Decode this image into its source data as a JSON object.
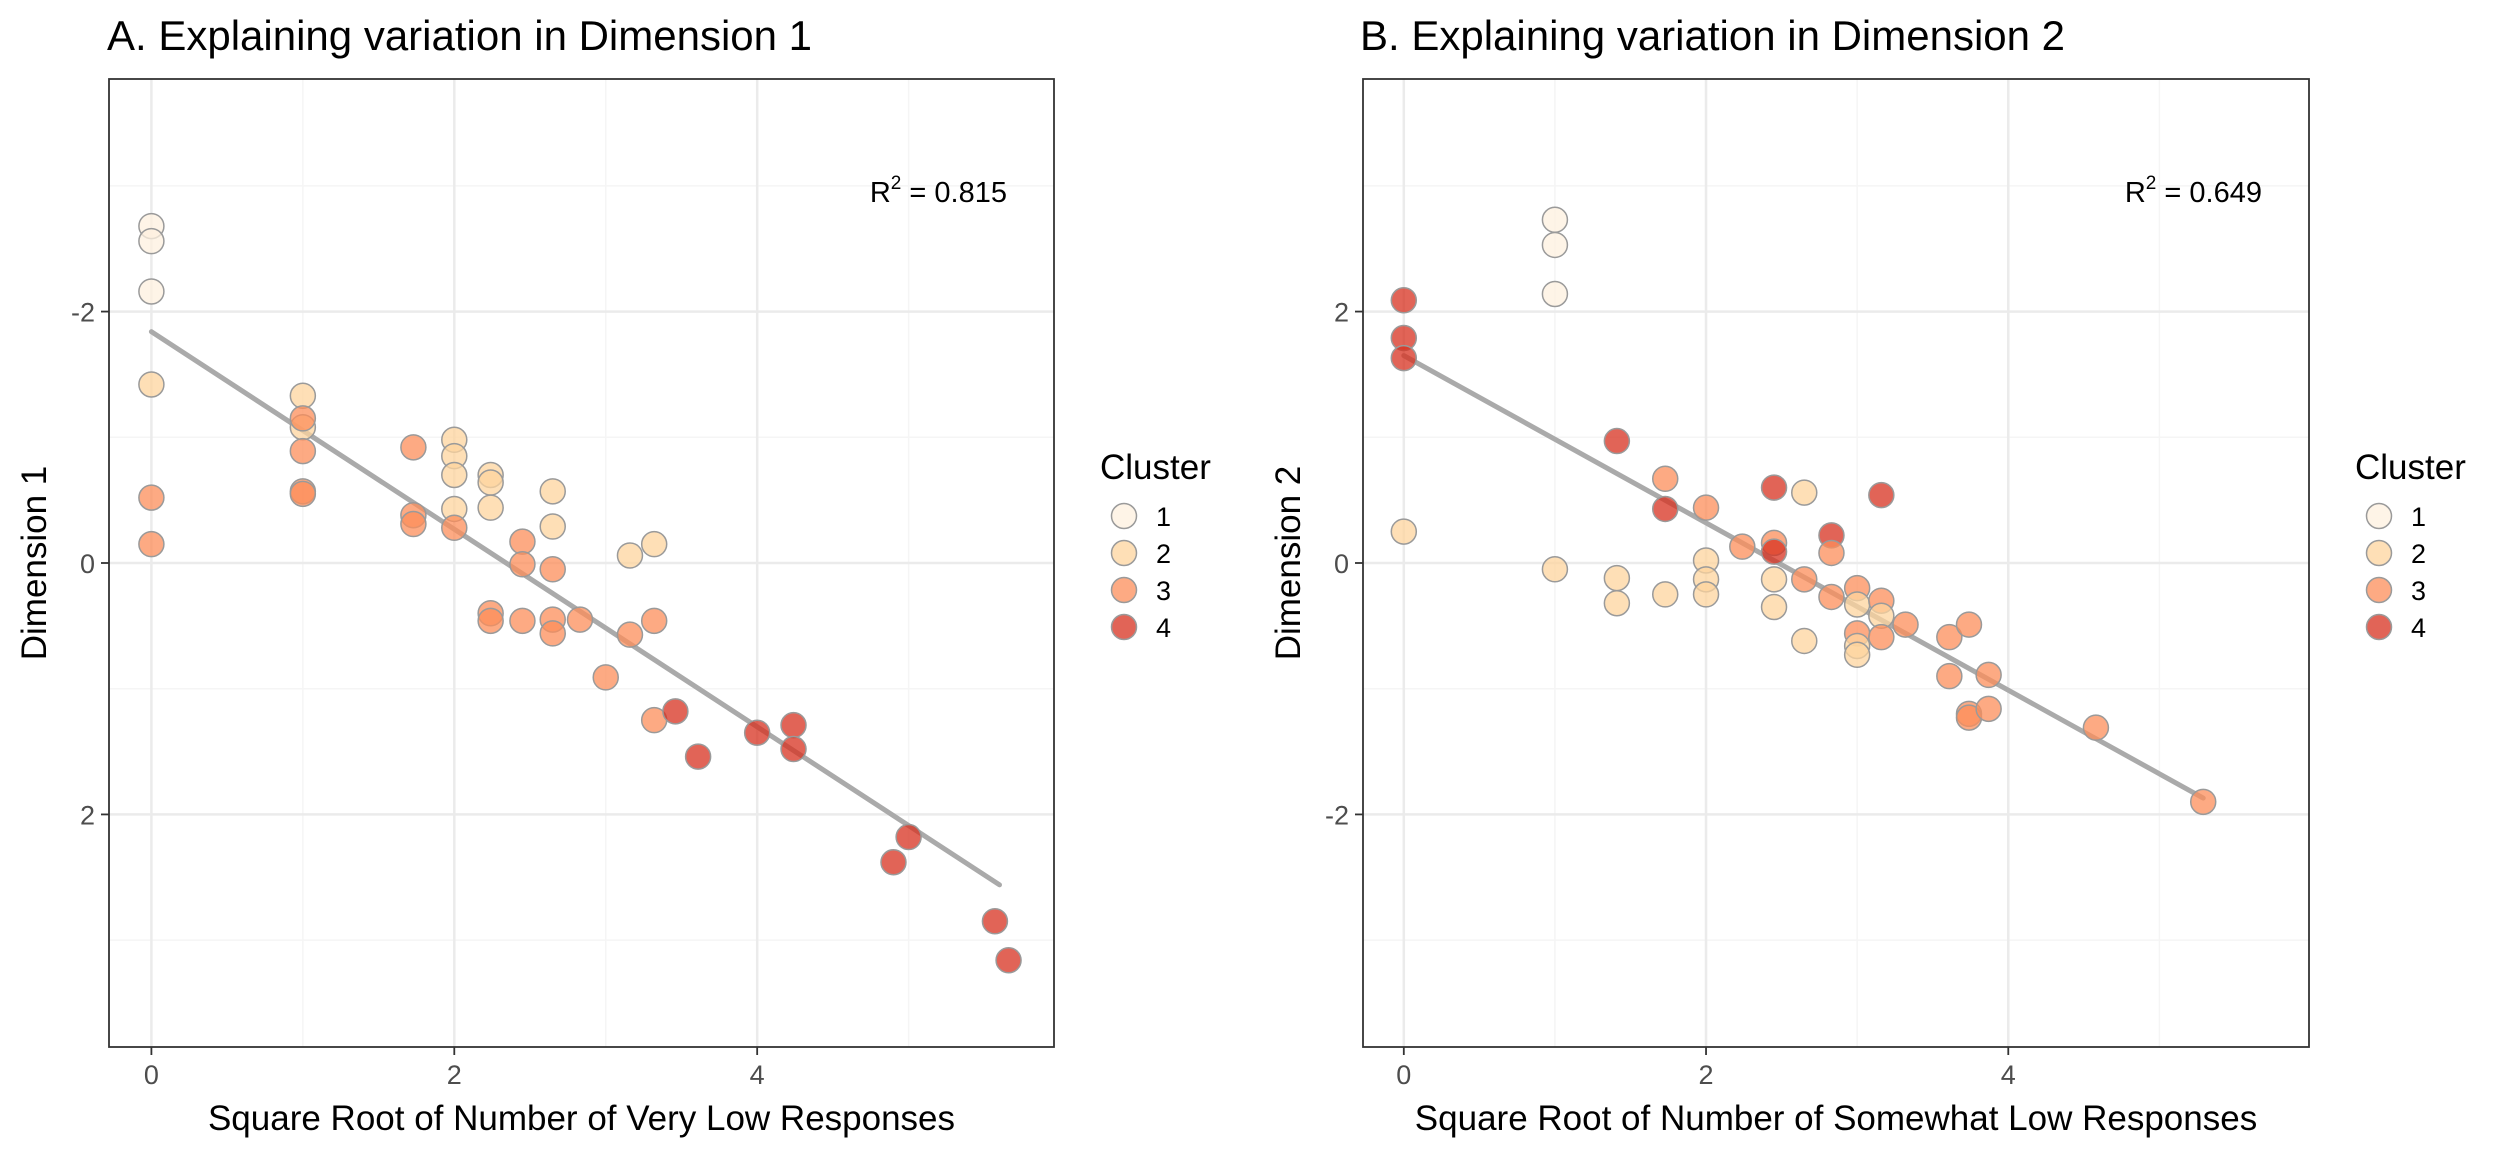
{
  "chart_data": [
    {
      "type": "scatter",
      "title": "A. Explaining variation in Dimension 1",
      "xlabel": "Square Root of Number of Very Low Responses",
      "ylabel": "Dimension 1",
      "xlim": [
        -0.28,
        5.96
      ],
      "ylim": [
        -3.85,
        3.85
      ],
      "y_reversed": true,
      "xticks": [
        0,
        2,
        4
      ],
      "xtick_labels": [
        "0",
        "2",
        "4"
      ],
      "yticks": [
        -2,
        0,
        2
      ],
      "ytick_labels": [
        "-2",
        "0",
        "2"
      ],
      "grid": true,
      "annotation": {
        "base": "R",
        "sup": "2",
        "rest": " = 0.815"
      },
      "fit_line": {
        "x": [
          0,
          5.6
        ],
        "y": [
          -1.84,
          2.56
        ]
      },
      "legend": {
        "title": "Cluster",
        "position": "right",
        "entries": [
          "1",
          "2",
          "3",
          "4"
        ]
      },
      "points": [
        {
          "x": 0,
          "y": -2.68,
          "cluster": 1
        },
        {
          "x": 0,
          "y": -2.56,
          "cluster": 1
        },
        {
          "x": 0,
          "y": -2.16,
          "cluster": 1
        },
        {
          "x": 0,
          "y": -1.42,
          "cluster": 2
        },
        {
          "x": 0,
          "y": -0.52,
          "cluster": 3
        },
        {
          "x": 0,
          "y": -0.15,
          "cluster": 3
        },
        {
          "x": 1,
          "y": -1.33,
          "cluster": 2
        },
        {
          "x": 1,
          "y": -1.08,
          "cluster": 2
        },
        {
          "x": 1,
          "y": -1.15,
          "cluster": 3
        },
        {
          "x": 1,
          "y": -0.89,
          "cluster": 3
        },
        {
          "x": 1,
          "y": -0.57,
          "cluster": 3
        },
        {
          "x": 1,
          "y": -0.55,
          "cluster": 3
        },
        {
          "x": 1.73,
          "y": -0.92,
          "cluster": 3
        },
        {
          "x": 1.73,
          "y": -0.38,
          "cluster": 3
        },
        {
          "x": 1.73,
          "y": -0.31,
          "cluster": 3
        },
        {
          "x": 2,
          "y": -0.98,
          "cluster": 2
        },
        {
          "x": 2,
          "y": -0.85,
          "cluster": 2
        },
        {
          "x": 2,
          "y": -0.7,
          "cluster": 2
        },
        {
          "x": 2,
          "y": -0.43,
          "cluster": 2
        },
        {
          "x": 2,
          "y": -0.28,
          "cluster": 3
        },
        {
          "x": 2.24,
          "y": -0.7,
          "cluster": 2
        },
        {
          "x": 2.24,
          "y": -0.64,
          "cluster": 2
        },
        {
          "x": 2.24,
          "y": -0.44,
          "cluster": 2
        },
        {
          "x": 2.24,
          "y": 0.4,
          "cluster": 3
        },
        {
          "x": 2.24,
          "y": 0.46,
          "cluster": 3
        },
        {
          "x": 2.45,
          "y": -0.17,
          "cluster": 3
        },
        {
          "x": 2.45,
          "y": 0.01,
          "cluster": 3
        },
        {
          "x": 2.45,
          "y": 0.46,
          "cluster": 3
        },
        {
          "x": 2.65,
          "y": -0.57,
          "cluster": 2
        },
        {
          "x": 2.65,
          "y": -0.29,
          "cluster": 2
        },
        {
          "x": 2.65,
          "y": 0.05,
          "cluster": 3
        },
        {
          "x": 2.65,
          "y": 0.45,
          "cluster": 3
        },
        {
          "x": 2.65,
          "y": 0.56,
          "cluster": 3
        },
        {
          "x": 2.83,
          "y": 0.45,
          "cluster": 3
        },
        {
          "x": 3,
          "y": 0.91,
          "cluster": 3
        },
        {
          "x": 3.16,
          "y": -0.06,
          "cluster": 2
        },
        {
          "x": 3.16,
          "y": 0.57,
          "cluster": 3
        },
        {
          "x": 3.32,
          "y": -0.15,
          "cluster": 2
        },
        {
          "x": 3.32,
          "y": 0.46,
          "cluster": 3
        },
        {
          "x": 3.32,
          "y": 1.25,
          "cluster": 3
        },
        {
          "x": 3.46,
          "y": 1.18,
          "cluster": 4
        },
        {
          "x": 3.61,
          "y": 1.54,
          "cluster": 4
        },
        {
          "x": 4,
          "y": 1.35,
          "cluster": 4
        },
        {
          "x": 4.24,
          "y": 1.29,
          "cluster": 4
        },
        {
          "x": 4.24,
          "y": 1.48,
          "cluster": 4
        },
        {
          "x": 4.9,
          "y": 2.38,
          "cluster": 4
        },
        {
          "x": 5,
          "y": 2.18,
          "cluster": 4
        },
        {
          "x": 5.57,
          "y": 2.85,
          "cluster": 4
        },
        {
          "x": 5.66,
          "y": 3.16,
          "cluster": 4
        }
      ]
    },
    {
      "type": "scatter",
      "title": "B. Explaining variation in Dimension 2",
      "xlabel": "Square Root of Number of Somewhat Low Responses",
      "ylabel": "Dimension 2",
      "xlim": [
        -0.27,
        5.99
      ],
      "ylim": [
        -3.85,
        3.85
      ],
      "y_reversed": false,
      "xticks": [
        0,
        2,
        4
      ],
      "xtick_labels": [
        "0",
        "2",
        "4"
      ],
      "yticks": [
        -2,
        0,
        2
      ],
      "ytick_labels": [
        "-2",
        "0",
        "2"
      ],
      "grid": true,
      "annotation": {
        "base": "R",
        "sup": "2",
        "rest": " = 0.649"
      },
      "fit_line": {
        "x": [
          0,
          5.29
        ],
        "y": [
          1.65,
          -1.87
        ]
      },
      "legend": {
        "title": "Cluster",
        "position": "right",
        "entries": [
          "1",
          "2",
          "3",
          "4"
        ]
      },
      "points": [
        {
          "x": 1,
          "y": 2.73,
          "cluster": 1
        },
        {
          "x": 1,
          "y": 2.53,
          "cluster": 1
        },
        {
          "x": 1,
          "y": 2.14,
          "cluster": 1
        },
        {
          "x": 0,
          "y": 2.09,
          "cluster": 4
        },
        {
          "x": 0,
          "y": 1.79,
          "cluster": 4
        },
        {
          "x": 0,
          "y": 1.63,
          "cluster": 4
        },
        {
          "x": 0,
          "y": 0.25,
          "cluster": 2
        },
        {
          "x": 1,
          "y": -0.05,
          "cluster": 2
        },
        {
          "x": 1.41,
          "y": 0.97,
          "cluster": 4
        },
        {
          "x": 1.41,
          "y": -0.12,
          "cluster": 2
        },
        {
          "x": 1.41,
          "y": -0.32,
          "cluster": 2
        },
        {
          "x": 1.73,
          "y": 0.67,
          "cluster": 3
        },
        {
          "x": 1.73,
          "y": 0.43,
          "cluster": 4
        },
        {
          "x": 1.73,
          "y": -0.25,
          "cluster": 2
        },
        {
          "x": 2,
          "y": 0.44,
          "cluster": 3
        },
        {
          "x": 2,
          "y": 0.02,
          "cluster": 2
        },
        {
          "x": 2,
          "y": -0.13,
          "cluster": 2
        },
        {
          "x": 2,
          "y": -0.25,
          "cluster": 2
        },
        {
          "x": 2.24,
          "y": 0.13,
          "cluster": 3
        },
        {
          "x": 2.45,
          "y": 0.6,
          "cluster": 4
        },
        {
          "x": 2.45,
          "y": 0.16,
          "cluster": 3
        },
        {
          "x": 2.45,
          "y": 0.09,
          "cluster": 4
        },
        {
          "x": 2.45,
          "y": -0.13,
          "cluster": 2
        },
        {
          "x": 2.45,
          "y": -0.35,
          "cluster": 2
        },
        {
          "x": 2.65,
          "y": 0.56,
          "cluster": 2
        },
        {
          "x": 2.65,
          "y": -0.13,
          "cluster": 3
        },
        {
          "x": 2.65,
          "y": -0.62,
          "cluster": 2
        },
        {
          "x": 2.83,
          "y": 0.22,
          "cluster": 4
        },
        {
          "x": 2.83,
          "y": 0.08,
          "cluster": 3
        },
        {
          "x": 2.83,
          "y": -0.27,
          "cluster": 3
        },
        {
          "x": 3,
          "y": -0.2,
          "cluster": 3
        },
        {
          "x": 3,
          "y": -0.33,
          "cluster": 2
        },
        {
          "x": 3,
          "y": -0.56,
          "cluster": 3
        },
        {
          "x": 3,
          "y": -0.66,
          "cluster": 2
        },
        {
          "x": 3,
          "y": -0.73,
          "cluster": 2
        },
        {
          "x": 3.16,
          "y": 0.54,
          "cluster": 4
        },
        {
          "x": 3.16,
          "y": -0.3,
          "cluster": 3
        },
        {
          "x": 3.16,
          "y": -0.42,
          "cluster": 2
        },
        {
          "x": 3.16,
          "y": -0.59,
          "cluster": 3
        },
        {
          "x": 3.32,
          "y": -0.49,
          "cluster": 3
        },
        {
          "x": 3.61,
          "y": -0.59,
          "cluster": 3
        },
        {
          "x": 3.61,
          "y": -0.9,
          "cluster": 3
        },
        {
          "x": 3.74,
          "y": -0.49,
          "cluster": 3
        },
        {
          "x": 3.74,
          "y": -1.2,
          "cluster": 3
        },
        {
          "x": 3.74,
          "y": -1.23,
          "cluster": 3
        },
        {
          "x": 3.87,
          "y": -0.89,
          "cluster": 3
        },
        {
          "x": 3.87,
          "y": -1.16,
          "cluster": 3
        },
        {
          "x": 4.58,
          "y": -1.31,
          "cluster": 3
        },
        {
          "x": 5.29,
          "y": -1.9,
          "cluster": 3
        }
      ]
    }
  ],
  "colors": {
    "cluster_1": "#fdf0df",
    "cluster_2": "#fdd49e",
    "cluster_3": "#fc8d59",
    "cluster_4": "#d7301f",
    "point_stroke": "#9a9a9a",
    "fit_line": "#aaaaaa",
    "grid_major": "#ebebeb",
    "grid_minor": "#f5f5f5",
    "panel_border": "#333333"
  }
}
